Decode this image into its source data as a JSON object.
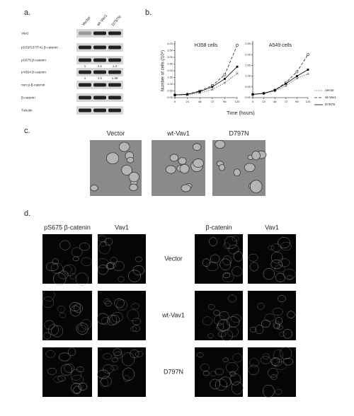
{
  "panels": [
    "a.",
    "b.",
    "c.",
    "d."
  ],
  "blot": {
    "lanes": [
      "Vector",
      "wt-Vav1",
      "D797N"
    ],
    "rows": [
      "Vav1",
      "pS33/S37/T41 β-catenin",
      "pS675 β-catenin",
      "pY654 β-catenin",
      "non p-β-catenin",
      "β-catenin",
      "Tubulin"
    ],
    "quant": [
      [
        1,
        1.1,
        1.3
      ],
      [
        1,
        1.1,
        1.36
      ]
    ]
  },
  "growth_axes": {
    "ylabel": "Number of cells (/10⁶)",
    "xlabel": "Time (hours)"
  },
  "chart_data": [
    {
      "type": "line",
      "title": "H358 cells",
      "x": [
        0,
        24,
        48,
        72,
        96,
        120
      ],
      "xlim": [
        0,
        120
      ],
      "xticks": [
        0,
        24,
        48,
        72,
        96,
        120
      ],
      "ylim": [
        0,
        4
      ],
      "yticks": [
        {
          "value": 0,
          "label": "0.00"
        },
        {
          "value": 0.5,
          "label": "0.50"
        },
        {
          "value": 1,
          "label": "1.00"
        },
        {
          "value": 1.5,
          "label": "1.50"
        },
        {
          "value": 2,
          "label": "2.00"
        },
        {
          "value": 2.5,
          "label": "2.50"
        },
        {
          "value": 3,
          "label": "3.00"
        },
        {
          "value": 3.5,
          "label": "3.50"
        },
        {
          "value": 4,
          "label": "4.00"
        }
      ],
      "legend": "right",
      "series": [
        {
          "name": "Vector",
          "color": "#555555",
          "dash": "1.5,1.5",
          "marker": "x",
          "values": [
            0.2,
            0.2,
            0.35,
            0.6,
            1.1,
            1.8
          ]
        },
        {
          "name": "wt-Vav1",
          "color": "#222222",
          "dash": "4,2",
          "marker": "o",
          "values": [
            0.2,
            0.25,
            0.5,
            0.9,
            1.7,
            3.9
          ]
        },
        {
          "name": "D797N",
          "color": "#000000",
          "dash": "none",
          "marker": "s",
          "values": [
            0.2,
            0.25,
            0.45,
            0.8,
            1.4,
            2.3
          ]
        }
      ]
    },
    {
      "type": "line",
      "title": "A549 cells",
      "x": [
        0,
        24,
        48,
        72,
        96,
        120
      ],
      "xlim": [
        0,
        120
      ],
      "xticks": [
        0,
        24,
        48,
        72,
        96,
        120
      ],
      "ylim": [
        0,
        2.5
      ],
      "yticks": [
        {
          "value": 0,
          "label": "0.00"
        },
        {
          "value": 0.5,
          "label": "0.50"
        },
        {
          "value": 1,
          "label": "1.00"
        },
        {
          "value": 1.5,
          "label": "1.50"
        },
        {
          "value": 2,
          "label": "2.00"
        },
        {
          "value": 2.5,
          "label": "2.50"
        }
      ],
      "series": [
        {
          "color": "#555555",
          "dash": "1.5,1.5",
          "marker": "x",
          "values": [
            0.15,
            0.2,
            0.3,
            0.55,
            0.9,
            1.1
          ]
        },
        {
          "color": "#222222",
          "dash": "4,2",
          "marker": "o",
          "values": [
            0.15,
            0.2,
            0.35,
            0.7,
            1.2,
            2.0
          ]
        },
        {
          "color": "#000000",
          "dash": "none",
          "marker": "s",
          "values": [
            0.15,
            0.2,
            0.35,
            0.65,
            1.0,
            1.3
          ]
        }
      ]
    }
  ],
  "morphology": {
    "titles": [
      "Vector",
      "wt-Vav1",
      "D797N"
    ]
  },
  "staining": {
    "columns": [
      "pS675 β-catenin",
      "Vav1",
      "β-catenin",
      "Vav1"
    ],
    "rows": [
      "Vector",
      "wt-Vav1",
      "D797N"
    ]
  }
}
